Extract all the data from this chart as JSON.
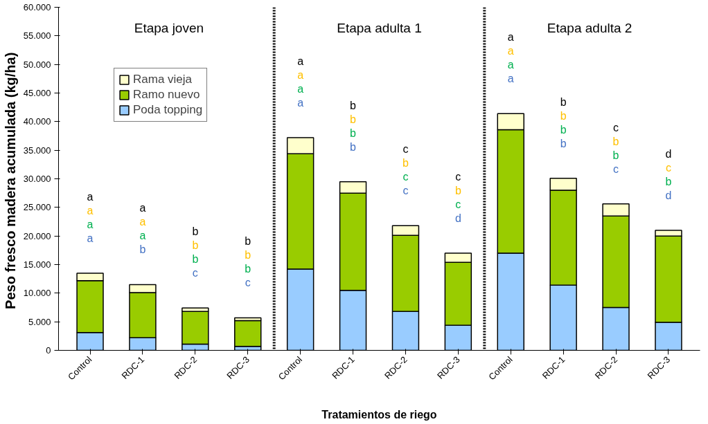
{
  "chart_data": {
    "type": "bar",
    "stacked": true,
    "categories": [
      "Control",
      "RDC-1",
      "RDC-2",
      "RDC-3",
      "Control",
      "RDC-1",
      "RDC-2",
      "RDC-3",
      "Control",
      "RDC-1",
      "RDC-2",
      "RDC-3"
    ],
    "series": [
      {
        "name": "Poda topping",
        "color": "#99ccff",
        "values": [
          3100,
          2200,
          1100,
          700,
          14200,
          10500,
          6800,
          4400,
          17000,
          11400,
          7500,
          4900
        ]
      },
      {
        "name": "Ramo nuevo",
        "color": "#99cc00",
        "values": [
          9100,
          7900,
          5700,
          4500,
          20200,
          17000,
          13300,
          11000,
          21600,
          16600,
          16000,
          15100
        ]
      },
      {
        "name": "Rama vieja",
        "color": "#ffffcc",
        "values": [
          1300,
          1400,
          600,
          500,
          2800,
          2000,
          1700,
          1600,
          2800,
          2100,
          2100,
          1000
        ]
      }
    ],
    "ylim": [
      0,
      60000
    ],
    "yticks": [
      {
        "value": 0,
        "label": "0"
      },
      {
        "value": 5000,
        "label": "5.000"
      },
      {
        "value": 10000,
        "label": "10.000"
      },
      {
        "value": 15000,
        "label": "15.000"
      },
      {
        "value": 20000,
        "label": "20.000"
      },
      {
        "value": 25000,
        "label": "25.000"
      },
      {
        "value": 30000,
        "label": "30.000"
      },
      {
        "value": 35000,
        "label": "35.000"
      },
      {
        "value": 40000,
        "label": "40.000"
      },
      {
        "value": 45000,
        "label": "45.000"
      },
      {
        "value": 50000,
        "label": "50.000"
      },
      {
        "value": 55000,
        "label": "55.000"
      },
      {
        "value": 60000,
        "label": "60.000"
      }
    ],
    "xlabel": "Tratamientos de riego",
    "ylabel": "Peso fresco madera acumulada  (kg/ha)",
    "annotations": [
      "Etapa joven",
      "Etapa adulta 1",
      "Etapa adulta 2",
      "a",
      "a",
      "a",
      "a",
      "a",
      "a",
      "a",
      "b",
      "b",
      "b",
      "b",
      "c",
      "b",
      "b",
      "b",
      "c",
      "a",
      "a",
      "a",
      "a",
      "b",
      "b",
      "b",
      "b",
      "c",
      "b",
      "c",
      "c",
      "c",
      "b",
      "c",
      "d",
      "a",
      "a",
      "a",
      "a",
      "b",
      "b",
      "b",
      "b",
      "c",
      "b",
      "b",
      "c",
      "d",
      "c",
      "b",
      "d"
    ],
    "legend": "top left",
    "grid": false
  }
}
